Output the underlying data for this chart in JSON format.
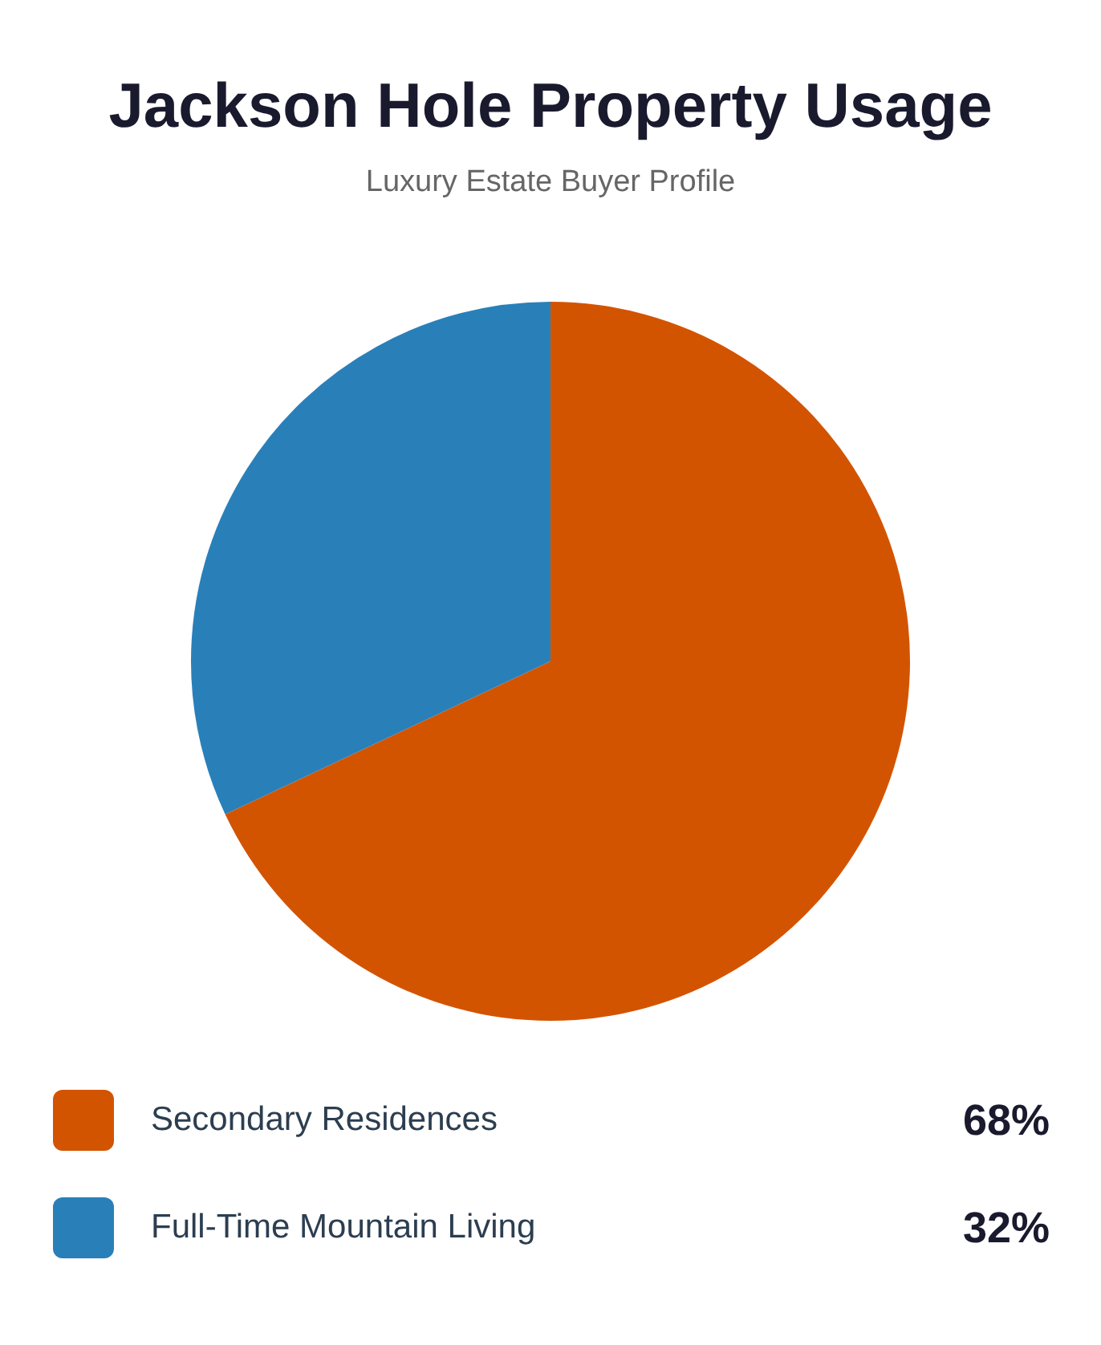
{
  "chart_data": {
    "type": "pie",
    "title": "Jackson Hole Property Usage",
    "subtitle": "Luxury Estate Buyer Profile",
    "categories": [
      "Secondary Residences",
      "Full-Time Mountain Living"
    ],
    "values": [
      68,
      32
    ],
    "colors": [
      "#d35400",
      "#2980b9"
    ],
    "value_labels": [
      "68%",
      "32%"
    ],
    "legend": "bottom"
  }
}
